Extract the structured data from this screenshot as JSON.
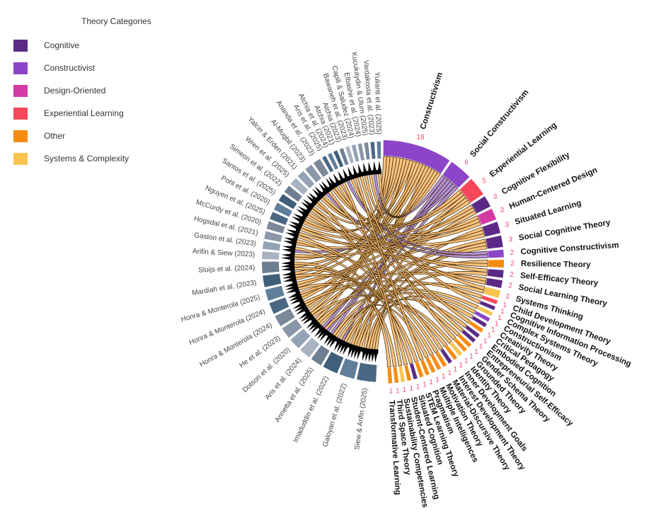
{
  "legend": {
    "title": "Theory Categories",
    "items": [
      {
        "label": "Cognitive",
        "color": "#5b2a86"
      },
      {
        "label": "Constructivist",
        "color": "#8c44c8"
      },
      {
        "label": "Design-Oriented",
        "color": "#d33aa6"
      },
      {
        "label": "Experiential Learning",
        "color": "#f7475a"
      },
      {
        "label": "Other",
        "color": "#f68c12"
      },
      {
        "label": "Systems & Complexity",
        "color": "#f8c450"
      }
    ]
  },
  "chart_data": {
    "type": "chord",
    "theories": [
      {
        "name": "Constructivism",
        "count": 18,
        "category": "Constructivist"
      },
      {
        "name": "Social Constructivism",
        "count": 6,
        "category": "Constructivist"
      },
      {
        "name": "Experiential Learning",
        "count": 5,
        "category": "Experiential Learning"
      },
      {
        "name": "Cognitive Flexibility",
        "count": 3,
        "category": "Cognitive"
      },
      {
        "name": "Human-Centered Design",
        "count": 3,
        "category": "Design-Oriented"
      },
      {
        "name": "Situated Learning",
        "count": 3,
        "category": "Cognitive"
      },
      {
        "name": "Social Cognitive Theory",
        "count": 3,
        "category": "Cognitive"
      },
      {
        "name": "Cognitive Constructivism",
        "count": 2,
        "category": "Constructivist"
      },
      {
        "name": "Resilience Theory",
        "count": 2,
        "category": "Other"
      },
      {
        "name": "Self-Efficacy Theory",
        "count": 2,
        "category": "Cognitive"
      },
      {
        "name": "Social Learning Theory",
        "count": 2,
        "category": "Cognitive"
      },
      {
        "name": "Systems Thinking",
        "count": 2,
        "category": "Systems & Complexity"
      },
      {
        "name": "Child Development Theory",
        "count": 1,
        "category": "Experiential Learning"
      },
      {
        "name": "Cognitive Information Processing",
        "count": 1,
        "category": "Cognitive"
      },
      {
        "name": "Complex Systems Theory",
        "count": 1,
        "category": "Systems & Complexity"
      },
      {
        "name": "Constructionism",
        "count": 1,
        "category": "Constructivist"
      },
      {
        "name": "Creativity Theory",
        "count": 1,
        "category": "Cognitive"
      },
      {
        "name": "Critical Pedagogy",
        "count": 1,
        "category": "Other"
      },
      {
        "name": "Embodied Cognition",
        "count": 1,
        "category": "Cognitive"
      },
      {
        "name": "Entrepreneurial Self-Efficacy",
        "count": 1,
        "category": "Cognitive"
      },
      {
        "name": "Gender Schema Theory",
        "count": 1,
        "category": "Other"
      },
      {
        "name": "Grounded Theory",
        "count": 1,
        "category": "Other"
      },
      {
        "name": "Identity Theory",
        "count": 1,
        "category": "Systems & Complexity"
      },
      {
        "name": "Inner Development Goals",
        "count": 1,
        "category": "Other"
      },
      {
        "name": "Interest Development Theory",
        "count": 1,
        "category": "Cognitive"
      },
      {
        "name": "Material-Discursive Theory",
        "count": 1,
        "category": "Other"
      },
      {
        "name": "Motivation Theory",
        "count": 1,
        "category": "Other"
      },
      {
        "name": "Multiple Intelligences",
        "count": 1,
        "category": "Other"
      },
      {
        "name": "Pragmatism",
        "count": 1,
        "category": "Other"
      },
      {
        "name": "STEM Learning Theory",
        "count": 1,
        "category": "Other"
      },
      {
        "name": "Situated Cognition",
        "count": 1,
        "category": "Cognitive"
      },
      {
        "name": "Student-Centered Learning",
        "count": 1,
        "category": "Other"
      },
      {
        "name": "Sustainability Competencies",
        "count": 1,
        "category": "Systems & Complexity"
      },
      {
        "name": "Third Space Theory",
        "count": 1,
        "category": "Other"
      },
      {
        "name": "Transformative Learning",
        "count": 1,
        "category": "Other"
      }
    ],
    "studies": [
      {
        "name": "Yulianti et al. (2025)",
        "links": 1
      },
      {
        "name": "Vardakosta et al. (2023)",
        "links": 1
      },
      {
        "name": "Kucukaydin & Ulum (2025)",
        "links": 1
      },
      {
        "name": "Elbashir et al. (2024)",
        "links": 1
      },
      {
        "name": "Capili & Saludez (2024)",
        "links": 1
      },
      {
        "name": "Bawaneh et al. (2023)",
        "links": 1
      },
      {
        "name": "Atchia (2023)",
        "links": 1
      },
      {
        "name": "Atchia (2021)",
        "links": 1
      },
      {
        "name": "Atchia et al. (2024)",
        "links": 1
      },
      {
        "name": "Aris et al. (2025)",
        "links": 1
      },
      {
        "name": "Ananda et al. (2023)",
        "links": 2
      },
      {
        "name": "Al-Muqbil (2023)",
        "links": 2
      },
      {
        "name": "Yalcin & Erden (2021)",
        "links": 2
      },
      {
        "name": "Wren et al. (2025)",
        "links": 2
      },
      {
        "name": "Simeon et al. (2022)",
        "links": 2
      },
      {
        "name": "Santos et al. (2025)",
        "links": 2
      },
      {
        "name": "Pohl et al. (2020)",
        "links": 2
      },
      {
        "name": "Nguyen et al. (2025)",
        "links": 2
      },
      {
        "name": "McCurdy et al. (2020)",
        "links": 2
      },
      {
        "name": "Hogsdal et al. (2021)",
        "links": 2
      },
      {
        "name": "Gaston et al. (2023)",
        "links": 2
      },
      {
        "name": "Arifin & Siew (2023)",
        "links": 2
      },
      {
        "name": "Sluijs et al. (2024)",
        "links": 3
      },
      {
        "name": "Mardiah et al. (2023)",
        "links": 3
      },
      {
        "name": "Honra & Monterola (2025)",
        "links": 3
      },
      {
        "name": "Honra & Monterola (2024)",
        "links": 3
      },
      {
        "name": "Honra & Monterola (2024)",
        "links": 3
      },
      {
        "name": "He et al. (2023)",
        "links": 3
      },
      {
        "name": "Dotson et al. (2020)",
        "links": 3
      },
      {
        "name": "Aris et al. (2024)",
        "links": 3
      },
      {
        "name": "Annetta et al. (2025)",
        "links": 3
      },
      {
        "name": "Imaduddin et al. (2022)",
        "links": 4
      },
      {
        "name": "Galoyan et al. (2022)",
        "links": 4
      },
      {
        "name": "Siew & Arifin (2025)",
        "links": 5
      }
    ],
    "study_colors": [
      "#4a6784",
      "#6e7f92",
      "#8a97a8",
      "#5f7e9a",
      "#a9b2c0",
      "#7b8899",
      "#3f5f7a",
      "#93a3b5"
    ],
    "chord_colors": {
      "default": "#f7b868",
      "constructivist_alt": "#a67fd0",
      "edge": "#3a2508",
      "arrow": "#000000"
    }
  }
}
